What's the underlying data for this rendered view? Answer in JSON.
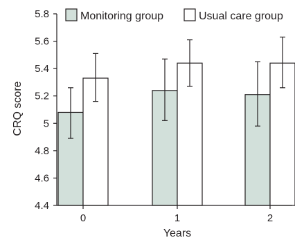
{
  "chart_data": {
    "type": "bar",
    "xlabel": "Years",
    "ylabel": "CRQ score",
    "categories": [
      "0",
      "1",
      "2"
    ],
    "ylim": [
      4.4,
      5.8
    ],
    "yticks": [
      "4.4",
      "4.6",
      "4.8",
      "5",
      "5.2",
      "5.4",
      "5.6",
      "5.8"
    ],
    "legend_position": "top",
    "series": [
      {
        "name": "Monitoring group",
        "color": "#d2e0da",
        "values": [
          5.08,
          5.24,
          5.21
        ],
        "error_low": [
          4.89,
          5.02,
          4.98
        ],
        "error_high": [
          5.26,
          5.47,
          5.45
        ]
      },
      {
        "name": "Usual care group",
        "color": "#ffffff",
        "values": [
          5.33,
          5.44,
          5.44
        ],
        "error_low": [
          5.16,
          5.27,
          5.26
        ],
        "error_high": [
          5.51,
          5.61,
          5.63
        ]
      }
    ]
  }
}
